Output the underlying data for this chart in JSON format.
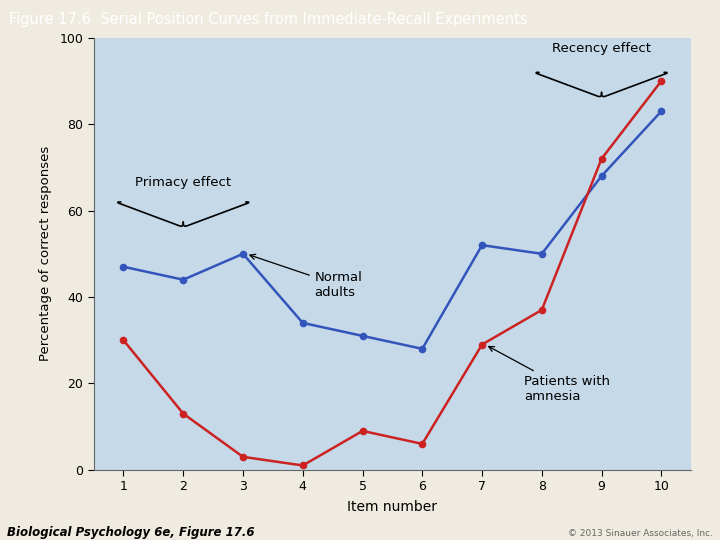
{
  "title": "Figure 17.6  Serial Position Curves from Immediate-Recall Experiments",
  "xlabel": "Item number",
  "ylabel": "Percentage of correct responses",
  "x": [
    1,
    2,
    3,
    4,
    5,
    6,
    7,
    8,
    9,
    10
  ],
  "normal_adults": [
    47,
    44,
    50,
    34,
    31,
    28,
    52,
    50,
    68,
    83
  ],
  "amnesia": [
    30,
    13,
    3,
    1,
    9,
    6,
    29,
    37,
    72,
    90
  ],
  "normal_color": "#3355bb",
  "amnesia_color": "#cc2222",
  "bg_color": "#c5d9e8",
  "outer_bg": "#f0ebe0",
  "title_bg": "#a06020",
  "title_color": "#ffffff",
  "ylim": [
    0,
    100
  ],
  "xlim": [
    0.5,
    10.5
  ],
  "yticks": [
    0,
    20,
    40,
    60,
    80,
    100
  ],
  "xticks": [
    1,
    2,
    3,
    4,
    5,
    6,
    7,
    8,
    9,
    10
  ],
  "footer_left": "Biological Psychology 6e, Figure 17.6",
  "footer_right": "© 2013 Sinauer Associates, Inc.",
  "label_normal": "Normal\nadults",
  "label_amnesia": "Patients with\namnesia",
  "label_primacy": "Primacy effect",
  "label_recency": "Recency effect"
}
